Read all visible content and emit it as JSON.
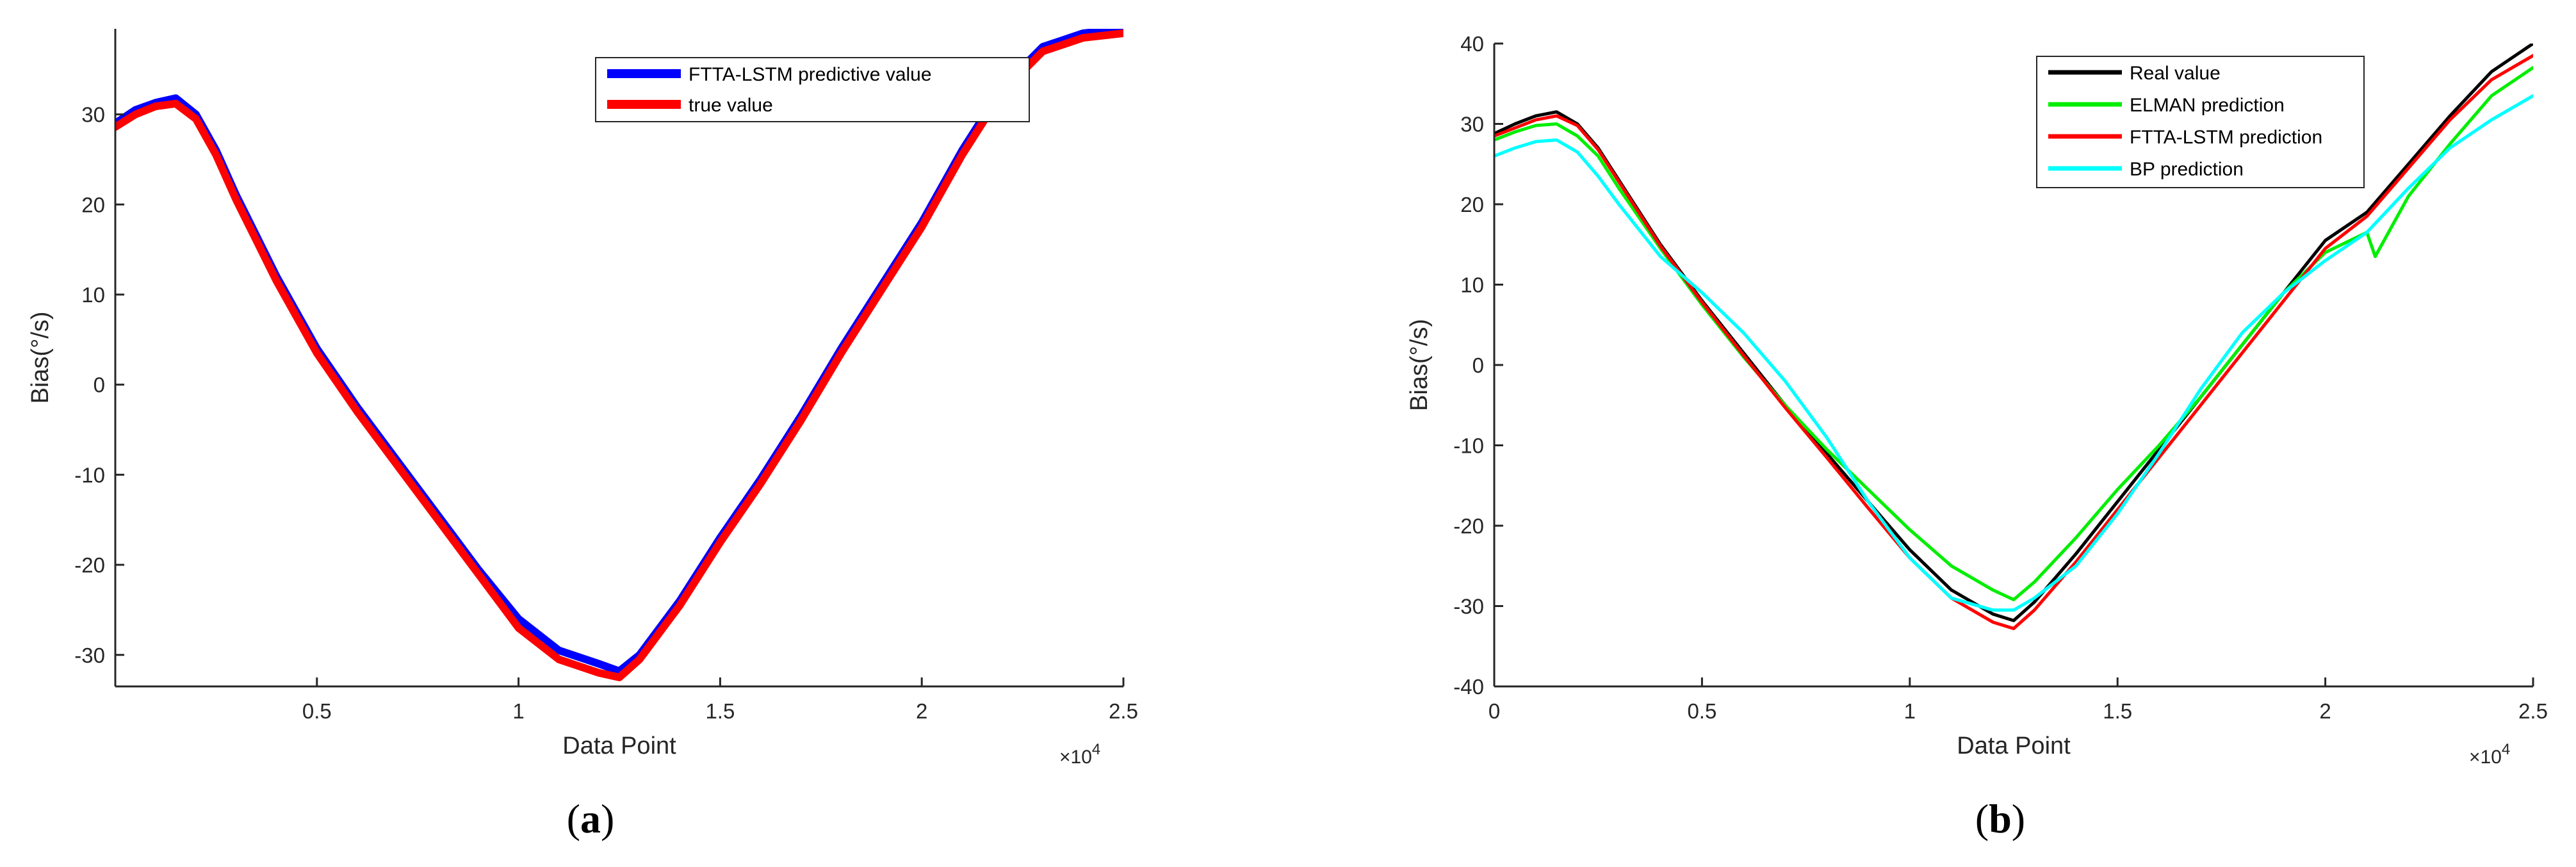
{
  "chart_data": [
    {
      "type": "line",
      "panel_label": {
        "open": "(",
        "letter": "a",
        "close": ")"
      },
      "xlabel": "Data Point",
      "ylabel": "Bias(°/s)",
      "x_multiplier": {
        "base": "×10",
        "exp": "4"
      },
      "xlim": [
        0,
        25000
      ],
      "ylim": [
        -33.5,
        39.5
      ],
      "x_ticks": [
        5000,
        10000,
        15000,
        20000,
        25000
      ],
      "x_tick_labels": [
        "0.5",
        "1",
        "1.5",
        "2",
        "2.5"
      ],
      "y_ticks": [
        -30,
        -20,
        -10,
        0,
        10,
        20,
        30
      ],
      "y_tick_labels": [
        "-30",
        "-20",
        "-10",
        "0",
        "10",
        "20",
        "30"
      ],
      "grid": false,
      "legend_position": "top-right",
      "series": [
        {
          "name": "FTTA-LSTM predictive value",
          "color": "#0000ff",
          "width": 12,
          "x": [
            0,
            500,
            1000,
            1500,
            2000,
            2500,
            3000,
            3500,
            4000,
            4500,
            5000,
            6000,
            7000,
            8000,
            9000,
            10000,
            11000,
            12000,
            12500,
            13000,
            14000,
            15000,
            16000,
            17000,
            18000,
            19000,
            20000,
            21000,
            22000,
            23000,
            24000,
            25000
          ],
          "y": [
            29,
            30.5,
            31.3,
            31.8,
            30,
            26,
            21,
            16.5,
            12,
            8,
            4,
            -2.5,
            -8.5,
            -14.5,
            -20.5,
            -26,
            -29.5,
            -31,
            -31.8,
            -30,
            -24,
            -17,
            -10.5,
            -3.5,
            4,
            11,
            18,
            26,
            33,
            37.5,
            39,
            39.5
          ]
        },
        {
          "name": "true value",
          "color": "#ff0000",
          "width": 12,
          "x": [
            0,
            500,
            1000,
            1500,
            2000,
            2500,
            3000,
            3500,
            4000,
            4500,
            5000,
            6000,
            7000,
            8000,
            9000,
            10000,
            11000,
            12000,
            12500,
            13000,
            14000,
            15000,
            16000,
            17000,
            18000,
            19000,
            20000,
            21000,
            22000,
            23000,
            24000,
            25000
          ],
          "y": [
            28.6,
            30,
            30.9,
            31.2,
            29.5,
            25.5,
            20.5,
            16,
            11.5,
            7.5,
            3.5,
            -3,
            -9,
            -15,
            -21,
            -27,
            -30.5,
            -32,
            -32.5,
            -30.5,
            -24.5,
            -17.5,
            -11,
            -4,
            3.5,
            10.5,
            17.5,
            25.5,
            32.5,
            37,
            38.5,
            39
          ]
        }
      ]
    },
    {
      "type": "line",
      "panel_label": {
        "open": "(",
        "letter": "b",
        "close": ")"
      },
      "xlabel": "Data Point",
      "ylabel": "Bias(°/s)",
      "x_multiplier": {
        "base": "×10",
        "exp": "4"
      },
      "xlim": [
        0,
        25000
      ],
      "ylim": [
        -40,
        40
      ],
      "x_ticks": [
        0,
        5000,
        10000,
        15000,
        20000,
        25000
      ],
      "x_tick_labels": [
        "0",
        "0.5",
        "1",
        "1.5",
        "2",
        "2.5"
      ],
      "y_ticks": [
        -40,
        -30,
        -20,
        -10,
        0,
        10,
        20,
        30,
        40
      ],
      "y_tick_labels": [
        "-40",
        "-30",
        "-20",
        "-10",
        "0",
        "10",
        "20",
        "30",
        "40"
      ],
      "grid": false,
      "legend_position": "top-right",
      "series": [
        {
          "name": "Real value",
          "color": "#000000",
          "width": 5,
          "x": [
            0,
            500,
            1000,
            1500,
            2000,
            2500,
            3000,
            4000,
            5000,
            6000,
            7000,
            8000,
            9000,
            10000,
            11000,
            12000,
            12500,
            13000,
            14000,
            15000,
            16000,
            17000,
            18000,
            19000,
            20000,
            21000,
            22000,
            23000,
            24000,
            25000
          ],
          "y": [
            28.8,
            30,
            31,
            31.5,
            30,
            27,
            23,
            15,
            8,
            1.5,
            -5,
            -11,
            -17,
            -23,
            -28,
            -31,
            -31.8,
            -29.5,
            -23.5,
            -17,
            -10.5,
            -4,
            2.5,
            9,
            15.5,
            19,
            25,
            31,
            36.5,
            40
          ]
        },
        {
          "name": "ELMAN prediction",
          "color": "#00ee00",
          "width": 5,
          "x": [
            0,
            500,
            1000,
            1500,
            2000,
            2500,
            3000,
            4000,
            5000,
            6000,
            7000,
            8000,
            9000,
            10000,
            11000,
            12000,
            12500,
            13000,
            14000,
            15000,
            16000,
            17000,
            18000,
            19000,
            20000,
            21000,
            21200,
            22000,
            23000,
            24000,
            25000
          ],
          "y": [
            28,
            29,
            29.8,
            30,
            28.5,
            26,
            22,
            14.5,
            7.5,
            1,
            -5,
            -10.5,
            -15.5,
            -20.5,
            -25,
            -28,
            -29.2,
            -27,
            -21.5,
            -15.5,
            -10,
            -4,
            2.5,
            9,
            14,
            16.5,
            13.5,
            21,
            27.5,
            33.5,
            37
          ]
        },
        {
          "name": "FTTA-LSTM prediction",
          "color": "#ff0000",
          "width": 5,
          "x": [
            0,
            500,
            1000,
            1500,
            2000,
            2500,
            3000,
            4000,
            5000,
            6000,
            7000,
            8000,
            9000,
            10000,
            11000,
            12000,
            12500,
            13000,
            14000,
            15000,
            16000,
            17000,
            18000,
            19000,
            20000,
            21000,
            22000,
            23000,
            24000,
            25000
          ],
          "y": [
            28.5,
            29.5,
            30.5,
            31,
            29.8,
            26.8,
            22.8,
            14.8,
            7.8,
            1.2,
            -5.3,
            -11.5,
            -17.8,
            -24,
            -29,
            -32,
            -32.8,
            -30.5,
            -24.5,
            -18,
            -11.5,
            -5,
            1.5,
            8,
            14.5,
            18.5,
            24.5,
            30.5,
            35.5,
            38.5
          ]
        },
        {
          "name": "BP prediction",
          "color": "#00ffff",
          "width": 5,
          "x": [
            0,
            500,
            1000,
            1500,
            2000,
            2500,
            3000,
            4000,
            5000,
            6000,
            7000,
            8000,
            9000,
            10000,
            11000,
            12000,
            12500,
            13000,
            14000,
            15000,
            16000,
            17000,
            18000,
            19000,
            20000,
            21000,
            22000,
            23000,
            24000,
            25000
          ],
          "y": [
            26,
            27,
            27.8,
            28,
            26.5,
            23.5,
            20,
            13.5,
            9,
            4,
            -2,
            -9,
            -17,
            -24,
            -29,
            -30.5,
            -30.5,
            -29,
            -25,
            -18.5,
            -11,
            -3,
            4,
            9,
            13,
            16.5,
            22,
            27,
            30.5,
            33.5
          ]
        }
      ]
    }
  ]
}
